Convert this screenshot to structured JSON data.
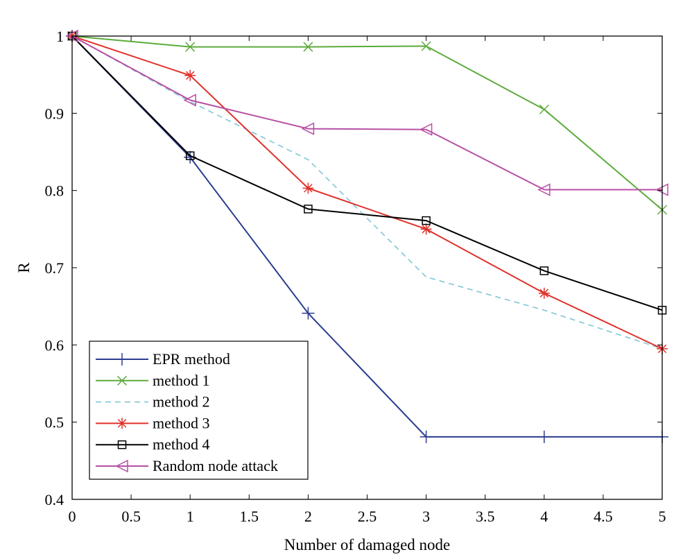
{
  "chart_data": {
    "type": "line",
    "title": "",
    "xlabel": "Number of damaged node",
    "ylabel": "R",
    "xlim": [
      0,
      5
    ],
    "ylim": [
      0.4,
      1
    ],
    "xticks": [
      "0",
      "0.5",
      "1",
      "1.5",
      "2",
      "2.5",
      "3",
      "3.5",
      "4",
      "4.5",
      "5"
    ],
    "yticks": [
      "0.4",
      "0.5",
      "0.6",
      "0.7",
      "0.8",
      "0.9",
      "1"
    ],
    "x": [
      0,
      1,
      2,
      3,
      4,
      5
    ],
    "grid": false,
    "legend_position": "bottom-left",
    "series": [
      {
        "name": "EPR method",
        "values": [
          1.0,
          0.843,
          0.641,
          0.481,
          0.481,
          0.481
        ],
        "color": "#2b3d8e",
        "marker": "plus",
        "dash": false
      },
      {
        "name": "method 1",
        "values": [
          1.0,
          0.986,
          0.986,
          0.987,
          0.905,
          0.775
        ],
        "color": "#5cab3c",
        "marker": "x",
        "dash": false
      },
      {
        "name": "method 2",
        "values": [
          1.0,
          0.915,
          0.84,
          0.688,
          0.645,
          0.595
        ],
        "color": "#7fc6d4",
        "marker": "none",
        "dash": true
      },
      {
        "name": "method 3",
        "values": [
          1.0,
          0.949,
          0.803,
          0.75,
          0.667,
          0.595
        ],
        "color": "#e0302a",
        "marker": "star",
        "dash": false
      },
      {
        "name": "method 4",
        "values": [
          1.0,
          0.845,
          0.776,
          0.761,
          0.696,
          0.645
        ],
        "color": "#000000",
        "marker": "square",
        "dash": false
      },
      {
        "name": "Random node attack",
        "values": [
          1.0,
          0.917,
          0.88,
          0.879,
          0.801,
          0.801
        ],
        "color": "#b84fa4",
        "marker": "triangle-left",
        "dash": false
      }
    ]
  }
}
